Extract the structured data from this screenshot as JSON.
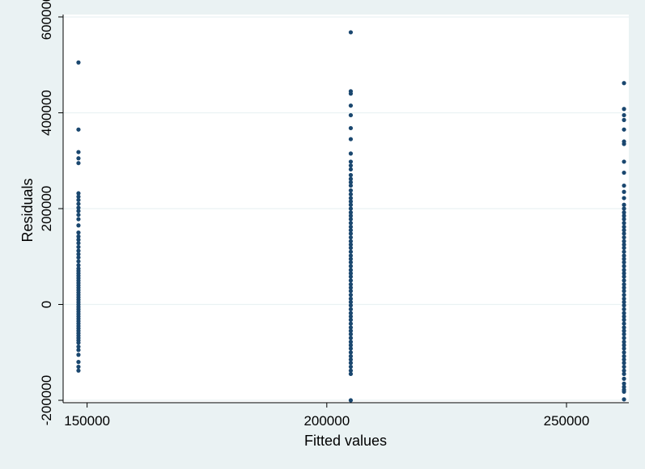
{
  "chart_data": {
    "type": "scatter",
    "title": "",
    "xlabel": "Fitted values",
    "ylabel": "Residuals",
    "xlim": [
      145000,
      263000
    ],
    "ylim": [
      -205000,
      605000
    ],
    "xticks": [
      150000,
      200000,
      250000
    ],
    "yticks": [
      -200000,
      0,
      200000,
      400000,
      600000
    ],
    "xtick_labels": [
      "150000",
      "200000",
      "250000"
    ],
    "ytick_labels": [
      "-200000",
      "0",
      "200000",
      "400000",
      "600000"
    ],
    "grid": "horizontal",
    "legend": "none",
    "colors": {
      "background": "#eaf2f3",
      "plot_area": "#ffffff",
      "gridline": "#eaf2f3",
      "marker": "#1a476f",
      "axis": "#000000"
    },
    "series": [
      {
        "x": 148200,
        "y": [
          505000,
          365000,
          318000,
          305000,
          295000,
          232000,
          225000,
          218000,
          210000,
          202000,
          195000,
          187000,
          178000,
          165000,
          150000,
          142000,
          135000,
          128000,
          120000,
          112000,
          105000,
          98000,
          90000,
          82000,
          75000,
          70000,
          65000,
          60000,
          55000,
          50000,
          45000,
          40000,
          35000,
          30000,
          25000,
          20000,
          15000,
          10000,
          5000,
          0,
          -5000,
          -10000,
          -15000,
          -20000,
          -25000,
          -30000,
          -35000,
          -40000,
          -45000,
          -50000,
          -55000,
          -60000,
          -65000,
          -70000,
          -75000,
          -80000,
          -88000,
          -95000,
          -105000,
          -120000,
          -130000,
          -138000
        ]
      },
      {
        "x": 205000,
        "y": [
          568000,
          445000,
          440000,
          415000,
          395000,
          368000,
          345000,
          315000,
          298000,
          290000,
          282000,
          270000,
          262000,
          255000,
          248000,
          238000,
          230000,
          222000,
          215000,
          208000,
          200000,
          192000,
          185000,
          178000,
          170000,
          162000,
          155000,
          148000,
          140000,
          132000,
          125000,
          118000,
          110000,
          102000,
          95000,
          88000,
          80000,
          72000,
          65000,
          58000,
          50000,
          42000,
          35000,
          28000,
          20000,
          12000,
          5000,
          -2000,
          -10000,
          -18000,
          -25000,
          -32000,
          -40000,
          -48000,
          -55000,
          -62000,
          -70000,
          -78000,
          -85000,
          -92000,
          -100000,
          -108000,
          -115000,
          -122000,
          -130000,
          -138000,
          -145000,
          -200000
        ]
      },
      {
        "x": 262000,
        "y": [
          462000,
          408000,
          395000,
          385000,
          365000,
          340000,
          335000,
          298000,
          275000,
          248000,
          235000,
          222000,
          208000,
          200000,
          192000,
          185000,
          178000,
          170000,
          162000,
          155000,
          148000,
          140000,
          132000,
          125000,
          118000,
          110000,
          102000,
          95000,
          88000,
          80000,
          72000,
          65000,
          58000,
          50000,
          42000,
          35000,
          28000,
          20000,
          12000,
          5000,
          -2000,
          -10000,
          -18000,
          -25000,
          -32000,
          -40000,
          -48000,
          -55000,
          -62000,
          -70000,
          -78000,
          -85000,
          -92000,
          -100000,
          -108000,
          -115000,
          -122000,
          -130000,
          -138000,
          -145000,
          -155000,
          -165000,
          -172000,
          -178000,
          -182000,
          -198000
        ]
      }
    ]
  }
}
